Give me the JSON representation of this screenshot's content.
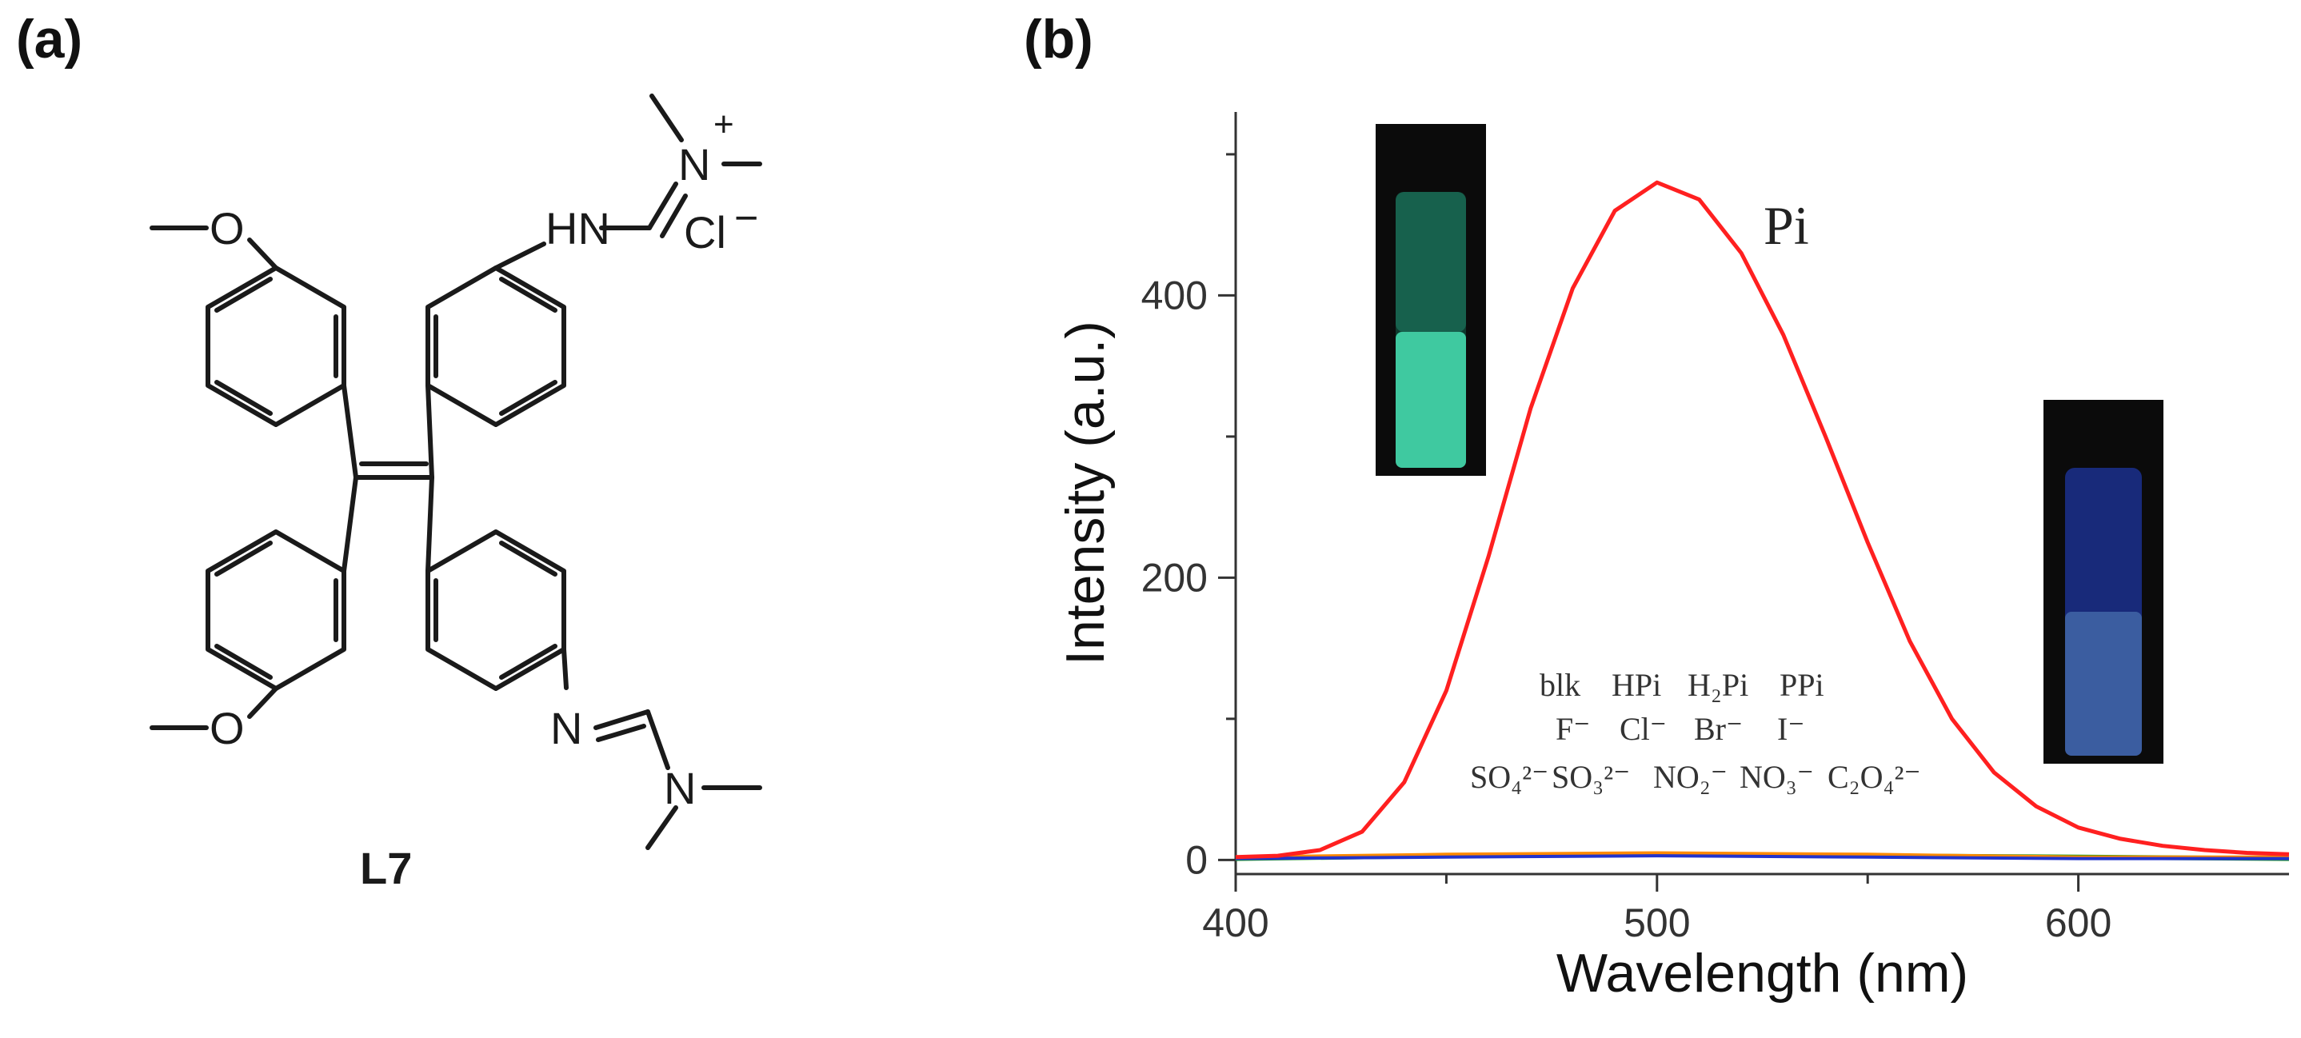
{
  "panel_a": {
    "label": "(a)",
    "compound": "L7",
    "atoms": {
      "o_top": "O",
      "o_bottom": "O",
      "hn": "HN",
      "n_plus": "N",
      "plus": "+",
      "cl": "Cl",
      "minus": "−",
      "n_imine": "N",
      "n_amine": "N"
    }
  },
  "panel_b": {
    "label": "(b)",
    "pi_label": "Pi",
    "legend_rows": [
      [
        "blk",
        "HPi",
        "H₂Pi",
        "PPi"
      ],
      [
        "F⁻",
        "Cl⁻",
        "Br⁻",
        "I⁻"
      ],
      [
        "SO₄²⁻",
        "SO₃²⁻",
        "NO₂⁻",
        "NO₃⁻",
        "C₂O₄²⁻"
      ]
    ]
  },
  "chart_data": {
    "type": "line",
    "title": "",
    "xlabel": "Wavelength (nm)",
    "ylabel": "Intensity (a.u.)",
    "xlim": [
      400,
      650
    ],
    "ylim": [
      -10,
      530
    ],
    "xticks": [
      400,
      500,
      600
    ],
    "yticks": [
      0,
      200,
      400
    ],
    "grid": false,
    "colors": {
      "pi": "#ff2020",
      "baseline_green": "#1a9a1a",
      "baseline_blue": "#2233cc",
      "baseline_orange": "#ff8a00"
    },
    "series": [
      {
        "name": "Pi",
        "x": [
          400,
          410,
          420,
          430,
          440,
          450,
          460,
          470,
          480,
          490,
          500,
          510,
          520,
          530,
          540,
          550,
          560,
          570,
          580,
          590,
          600,
          610,
          620,
          630,
          640,
          650
        ],
        "y": [
          2,
          3,
          7,
          20,
          55,
          120,
          215,
          320,
          405,
          460,
          480,
          468,
          430,
          372,
          300,
          225,
          155,
          100,
          62,
          38,
          23,
          15,
          10,
          7,
          5,
          4
        ]
      },
      {
        "x": [
          400,
          450,
          500,
          550,
          600,
          650
        ],
        "y": [
          1,
          2,
          3,
          2,
          1,
          1
        ]
      },
      {
        "x": [
          400,
          450,
          500,
          550,
          600,
          650
        ],
        "y": [
          2,
          4,
          5,
          4,
          2,
          2
        ]
      },
      {
        "x": [
          400,
          450,
          500,
          550,
          600,
          650
        ],
        "y": [
          1,
          3,
          4,
          3,
          2,
          1
        ]
      }
    ]
  }
}
